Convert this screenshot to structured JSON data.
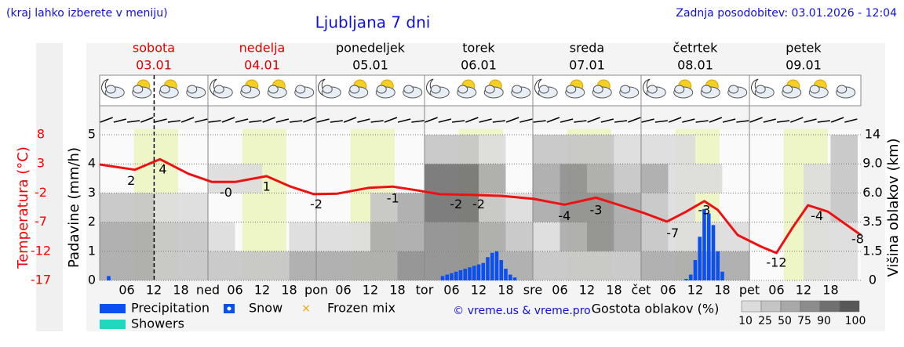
{
  "chart_data": {
    "type": "meteogram",
    "note": "(kraj lahko izberete v meniju)",
    "title": "Ljubljana 7 dni",
    "updated": "Zadnja posodobitev: 03.01.2026 - 12:04",
    "credit": "© vreme.us & vreme.pro",
    "days": [
      {
        "name": "sobota",
        "date": "03.01",
        "weekend": true
      },
      {
        "name": "nedelja",
        "date": "04.01",
        "weekend": true
      },
      {
        "name": "ponedeljek",
        "date": "05.01",
        "weekend": false
      },
      {
        "name": "torek",
        "date": "06.01",
        "weekend": false
      },
      {
        "name": "sreda",
        "date": "07.01",
        "weekend": false
      },
      {
        "name": "četrtek",
        "date": "08.01",
        "weekend": false
      },
      {
        "name": "petek",
        "date": "09.01",
        "weekend": false
      }
    ],
    "weekend_color": "#e00000",
    "xlim": [
      0,
      168.7
    ],
    "xticks": [
      {
        "value": 6,
        "label": "06"
      },
      12,
      18,
      {
        "value": 24,
        "label": "ned"
      },
      {
        "value": 30,
        "label": "06"
      },
      {
        "value": 36,
        "label": "12"
      },
      {
        "value": 42,
        "label": "18"
      },
      {
        "value": 48,
        "label": "pon"
      },
      {
        "value": 54,
        "label": "06"
      },
      {
        "value": 60,
        "label": "12"
      },
      {
        "value": 66,
        "label": "18"
      },
      {
        "value": 72,
        "label": "tor"
      },
      {
        "value": 78,
        "label": "06"
      },
      {
        "value": 84,
        "label": "12"
      },
      {
        "value": 90,
        "label": "18"
      },
      {
        "value": 96,
        "label": "sre"
      },
      {
        "value": 102,
        "label": "06"
      },
      {
        "value": 108,
        "label": "12"
      },
      {
        "value": 114,
        "label": "18"
      },
      {
        "value": 120,
        "label": "čet"
      },
      {
        "value": 126,
        "label": "06"
      },
      {
        "value": 132,
        "label": "12"
      },
      {
        "value": 138,
        "label": "18"
      },
      {
        "value": 144,
        "label": "pet"
      },
      {
        "value": 150,
        "label": "06"
      },
      {
        "value": 156,
        "label": "12"
      },
      {
        "value": 162,
        "label": "18"
      }
    ],
    "now": 12.07,
    "daylight": {
      "start": 7.6,
      "end": 17.4,
      "color": "#eef5c6"
    },
    "ylabel": "Padavine (mm/h)",
    "ylim": [
      0,
      5.2
    ],
    "yticks": [
      0,
      1,
      2,
      3,
      4,
      5
    ],
    "temp_label": "Temperatura (°C)",
    "temp_lim": [
      -17,
      9
    ],
    "temp_ticks": [
      8,
      3,
      -2,
      -7,
      -12,
      -17
    ],
    "temp_color": "#ff0000",
    "y2label": "Višina oblakov (km)",
    "y2ticks": [
      0,
      1.5,
      3.5,
      {
        "value": 6,
        "label": "6.0"
      },
      {
        "value": 9,
        "label": "9.0"
      },
      14
    ],
    "temperature": {
      "color": "#ee1111",
      "x": [
        0,
        7.8,
        13.4,
        19.7,
        24.9,
        30,
        37,
        42.3,
        47.5,
        52.7,
        59.7,
        64.9,
        70,
        75.3,
        82.3,
        89.2,
        96.2,
        103,
        110,
        115.3,
        120.5,
        125.7,
        130,
        134,
        137,
        141.4,
        146.6,
        150,
        153.6,
        157,
        161.4,
        168.7
      ],
      "values": [
        2.9,
        2.0,
        3.8,
        1.3,
        -0.1,
        -0.1,
        0.9,
        -0.9,
        -2.2,
        -2.1,
        -1.1,
        -0.9,
        -1.5,
        -2.2,
        -2.3,
        -2.5,
        -3.0,
        -4.0,
        -2.8,
        -4.1,
        -5.4,
        -6.9,
        -5.2,
        -3.4,
        -4.9,
        -9.2,
        -11.2,
        -12.3,
        -7.9,
        -4.1,
        -5.2,
        -9.2
      ]
    },
    "temp_labels": {
      "x": [
        7,
        14,
        28,
        37,
        48,
        65,
        79,
        84,
        103,
        110,
        127,
        134,
        150,
        159,
        168
      ],
      "values": [
        2,
        4,
        0,
        1,
        -2,
        -1,
        -2,
        -2,
        -4,
        -3,
        -7,
        -3,
        -12,
        -4,
        -8
      ],
      "value_labels": [
        "2",
        "4",
        "-0",
        "1",
        "-2",
        "-1",
        "-2",
        "-2",
        "-4",
        "-3",
        "-7",
        "-3",
        "-12",
        "-4",
        "-8"
      ]
    },
    "precipitation": {
      "color": "#0a50f0",
      "x": [
        2,
        76,
        77,
        78,
        79,
        80,
        81,
        82,
        83,
        84,
        85,
        86,
        87,
        88,
        89,
        90,
        91,
        92,
        130,
        131,
        132,
        133,
        134,
        135,
        136,
        137,
        138
      ],
      "values": [
        0.15,
        0.15,
        0.2,
        0.25,
        0.3,
        0.35,
        0.4,
        0.45,
        0.5,
        0.55,
        0.6,
        0.8,
        0.95,
        1.0,
        0.7,
        0.4,
        0.2,
        0.1,
        0.05,
        0.2,
        0.7,
        1.5,
        2.45,
        2.3,
        1.9,
        1.0,
        0.3
      ]
    },
    "cloud_x": [
      0,
      6,
      12,
      18,
      24,
      30,
      36,
      42,
      48,
      54,
      60,
      66,
      72,
      78,
      84,
      90,
      96,
      102,
      108,
      114,
      120,
      126,
      132,
      138,
      144,
      150,
      156,
      162
    ],
    "cloud_density": [
      [
        50,
        60,
        40,
        0,
        0
      ],
      [
        50,
        50,
        30,
        0,
        0
      ],
      [
        40,
        40,
        20,
        0,
        0
      ],
      [
        40,
        30,
        10,
        0,
        0
      ],
      [
        30,
        10,
        0,
        10,
        0
      ],
      [
        30,
        0,
        0,
        10,
        0
      ],
      [
        40,
        0,
        0,
        0,
        0
      ],
      [
        50,
        10,
        0,
        0,
        0
      ],
      [
        50,
        20,
        0,
        0,
        0
      ],
      [
        60,
        20,
        0,
        0,
        0
      ],
      [
        70,
        60,
        40,
        0,
        0
      ],
      [
        80,
        60,
        50,
        0,
        0
      ],
      [
        80,
        75,
        90,
        90,
        30
      ],
      [
        80,
        75,
        90,
        90,
        30
      ],
      [
        70,
        60,
        40,
        60,
        20
      ],
      [
        60,
        40,
        10,
        0,
        0
      ],
      [
        40,
        20,
        60,
        70,
        30
      ],
      [
        40,
        70,
        80,
        80,
        40
      ],
      [
        40,
        80,
        80,
        70,
        30
      ],
      [
        40,
        60,
        50,
        40,
        10
      ],
      [
        50,
        40,
        40,
        50,
        20
      ],
      [
        70,
        20,
        20,
        20,
        10
      ],
      [
        70,
        20,
        0,
        20,
        0
      ],
      [
        60,
        10,
        0,
        0,
        0
      ],
      [
        0,
        0,
        0,
        0,
        0
      ],
      [
        0,
        0,
        0,
        0,
        0
      ],
      [
        10,
        10,
        20,
        10,
        0
      ],
      [
        20,
        20,
        30,
        30,
        40
      ]
    ],
    "cloud_legend_title": "Gostota oblakov (%)",
    "cloud_levels": [
      10,
      25,
      50,
      75,
      90,
      100
    ],
    "cloud_colors": [
      "#dcdcdc",
      "#c4c4c4",
      "#a8a8a8",
      "#8c8c8c",
      "#707070",
      "#585858"
    ],
    "legend": [
      {
        "name": "Precipitation",
        "color": "#0a50f0"
      },
      {
        "name": "Snow",
        "color": "#0a50f0"
      },
      {
        "name": "Frozen mix",
        "color": "#f0a000"
      },
      {
        "name": "Showers",
        "color": "#20d8c0"
      }
    ]
  }
}
